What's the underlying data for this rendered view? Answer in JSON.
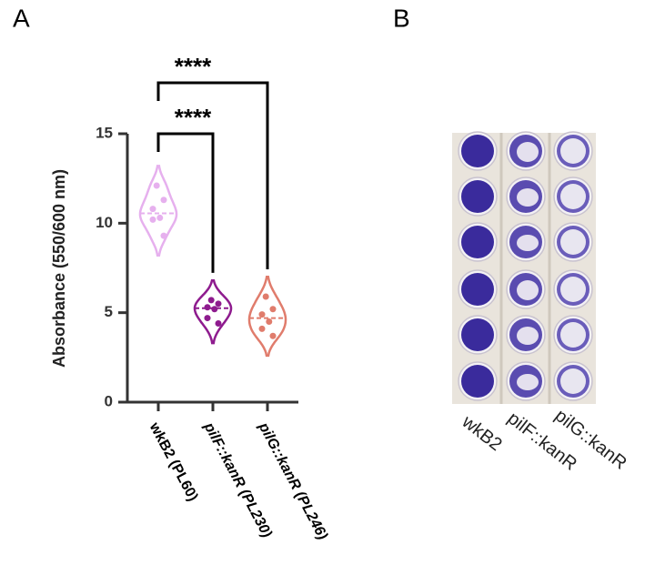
{
  "panel_labels": [
    "A",
    "B"
  ],
  "chart_data": {
    "type": "violin",
    "ylabel": "Absorbance (550/600 nm)",
    "categories": [
      "wkB2 (PL60)",
      "pilF::kanR (PL230)",
      "pilG::kanR (PL246)"
    ],
    "category_italic": [
      "",
      "pilF::kanR",
      "pilG::kanR"
    ],
    "series": [
      {
        "name": "wkB2 (PL60)",
        "color": "#e6b0ee",
        "values": [
          12.1,
          11.3,
          10.8,
          10.3,
          10.2,
          9.3
        ]
      },
      {
        "name": "pilF::kanR (PL230)",
        "color": "#8e1b8e",
        "values": [
          5.7,
          5.5,
          5.3,
          5.2,
          4.7,
          4.4
        ]
      },
      {
        "name": "pilG::kanR (PL246)",
        "color": "#e07c6c",
        "values": [
          5.9,
          5.2,
          4.9,
          4.5,
          4.1,
          3.7
        ]
      }
    ],
    "ylim": [
      0,
      15
    ],
    "yticks": [
      0,
      5,
      10,
      15
    ],
    "significance": [
      {
        "from": 0,
        "to": 1,
        "label": "****"
      },
      {
        "from": 0,
        "to": 2,
        "label": "****"
      }
    ]
  },
  "photo": {
    "labels": [
      "wkB2",
      "pilF::kanR",
      "pilG::kanR"
    ]
  }
}
